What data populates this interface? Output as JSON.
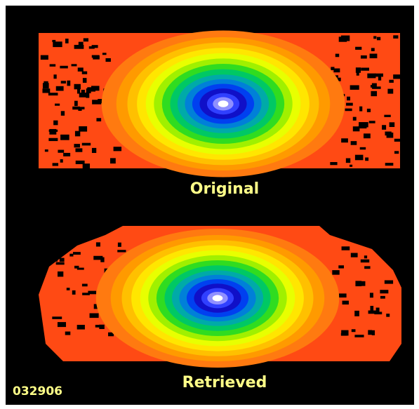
{
  "labels": {
    "top": "Original",
    "bottom": "Retrieved",
    "id": "032906"
  }
}
